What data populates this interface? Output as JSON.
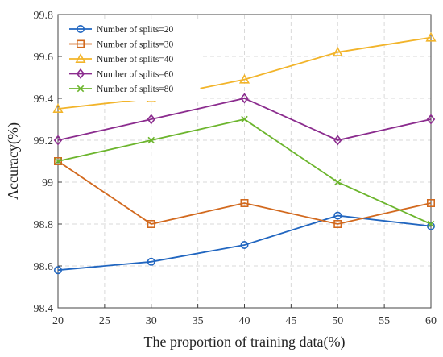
{
  "chart_data": {
    "type": "line",
    "xlabel": "The proportion of training data(%)",
    "ylabel": "Accuracy(%)",
    "xlim": [
      20,
      60
    ],
    "ylim": [
      98.4,
      99.8
    ],
    "xticks": [
      "20",
      "25",
      "30",
      "35",
      "40",
      "45",
      "50",
      "55",
      "60"
    ],
    "yticks": [
      "98.4",
      "98.6",
      "98.8",
      "99",
      "99.2",
      "99.4",
      "99.6",
      "99.8"
    ],
    "grid": true,
    "legend_position": "top-left",
    "x": [
      20,
      30,
      40,
      50,
      60
    ],
    "series": [
      {
        "name": "Number of splits=20",
        "values": [
          98.58,
          98.62,
          98.7,
          98.84,
          98.79
        ],
        "color": "#2166c0",
        "marker": "circle"
      },
      {
        "name": "Number of splits=30",
        "values": [
          99.1,
          98.8,
          98.9,
          98.8,
          98.9
        ],
        "color": "#d2691e",
        "marker": "square"
      },
      {
        "name": "Number of splits=40",
        "values": [
          99.35,
          99.4,
          99.49,
          99.62,
          99.69
        ],
        "color": "#f2b42a",
        "marker": "triangle"
      },
      {
        "name": "Number of splits=60",
        "values": [
          99.2,
          99.3,
          99.4,
          99.2,
          99.3
        ],
        "color": "#8b2c8e",
        "marker": "diamond"
      },
      {
        "name": "Number of splits=80",
        "values": [
          99.1,
          99.2,
          99.3,
          99.0,
          98.8
        ],
        "color": "#6cb52d",
        "marker": "x"
      }
    ]
  }
}
